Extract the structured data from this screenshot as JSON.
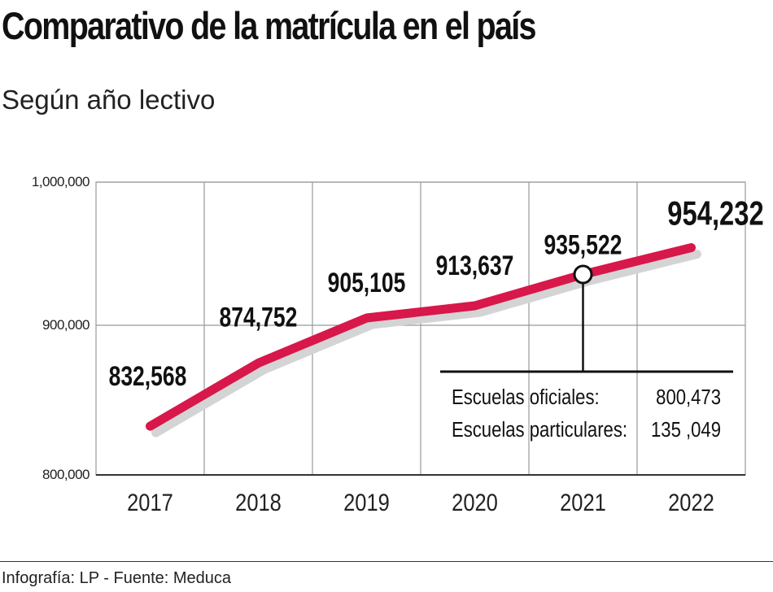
{
  "title": "Comparativo de la matrícula en el país",
  "subtitle": "Según año lectivo",
  "footer": "Infografía: LP - Fuente: Meduca",
  "chart_data": {
    "type": "line",
    "categories": [
      "2017",
      "2018",
      "2019",
      "2020",
      "2021",
      "2022"
    ],
    "values": [
      832568,
      874752,
      905105,
      913637,
      935522,
      954232
    ],
    "data_labels": [
      "832,568",
      "874,752",
      "905,105",
      "913,637",
      "935,522",
      "954,232"
    ],
    "ylim": [
      800000,
      1000000
    ],
    "y_ticks": [
      800000,
      900000,
      1000000
    ],
    "y_tick_labels": [
      "800,000",
      "900,000",
      "1,000,000"
    ],
    "grid": true,
    "line_color": "#d8174a",
    "shadow_color": "#d4d4d4",
    "annotation": {
      "category": "2021",
      "rows": [
        {
          "label": "Escuelas oficiales:",
          "value": "800,473"
        },
        {
          "label": "Escuelas particulares:",
          "value": "135 ,049"
        }
      ]
    }
  }
}
